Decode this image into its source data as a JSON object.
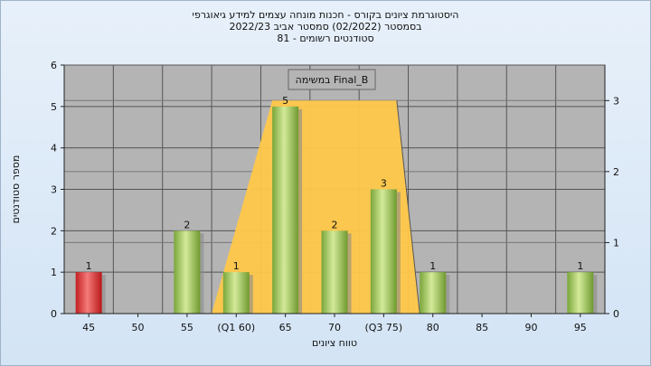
{
  "titles": {
    "line1": "היסטוגרמת ציונים בקורס - חכנות מונחה עצמים למידע גיאוגרפי",
    "line2": "בסמסטר  (02/2022)  סמסטר אביב 2022/23",
    "line3": "סטודנטים רשומים - 81"
  },
  "chart_data": {
    "type": "bar",
    "categories": [
      "45",
      "50",
      "55",
      "(Q1 60)",
      "65",
      "70",
      "(Q3 75)",
      "80",
      "85",
      "90",
      "95"
    ],
    "values": [
      1,
      0,
      2,
      1,
      5,
      2,
      3,
      1,
      0,
      0,
      1
    ],
    "bar_colors": [
      "#e03030",
      "#9dc455",
      "#9dc455",
      "#9dc455",
      "#9dc455",
      "#9dc455",
      "#9dc455",
      "#9dc455",
      "#9dc455",
      "#9dc455",
      "#9dc455"
    ],
    "xlabel": "טווח ציונים",
    "ylabel": "מספר סטודנטים",
    "ylim": [
      0,
      6
    ],
    "y_ticks": [
      "0",
      "1",
      "2",
      "3",
      "4",
      "5",
      "6"
    ],
    "y2lim": [
      0,
      3.5
    ],
    "y2_ticks": [
      "0",
      "1",
      "2",
      "3"
    ],
    "grid": true,
    "legend": {
      "label": "במשימה  Final_B",
      "placement": "top-center"
    },
    "overlay": {
      "type": "area",
      "color": "#ffc84a",
      "x_start": "(Q1 60)",
      "x_end": "(Q3 75)",
      "peak_from": "65",
      "peak_to": "(Q3 75)",
      "peak_value": 3
    }
  }
}
